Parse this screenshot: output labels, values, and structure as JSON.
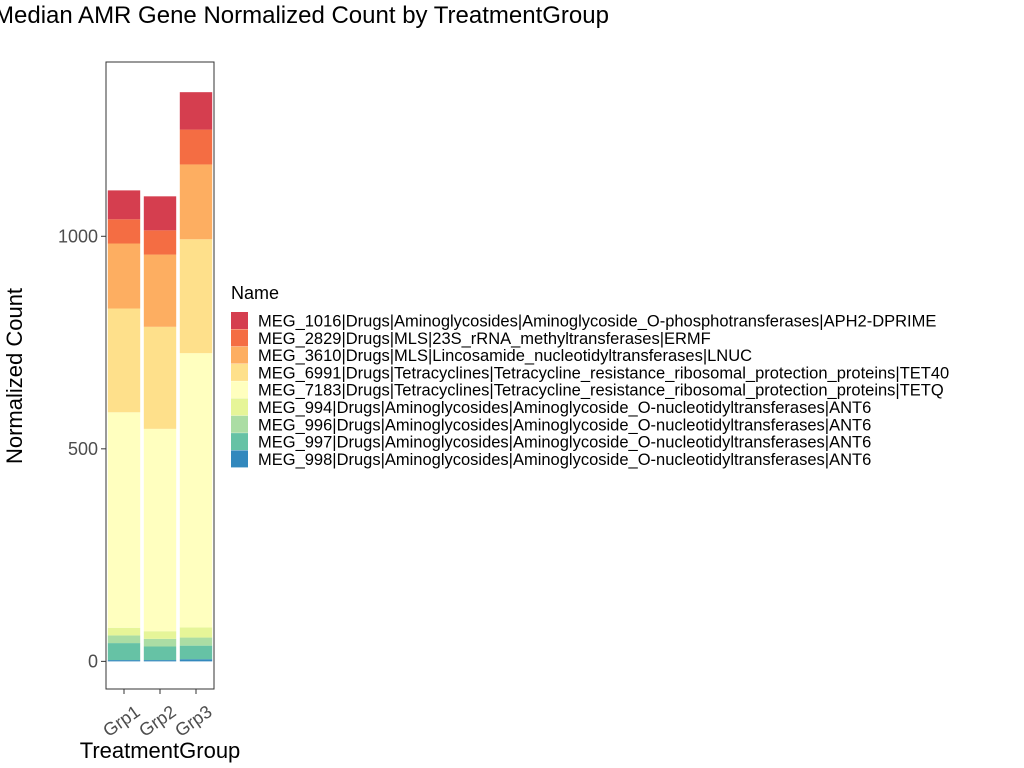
{
  "chart_data": {
    "type": "bar",
    "stacked": true,
    "title": "Median AMR Gene Normalized Count by TreatmentGroup",
    "xlabel": "TreatmentGroup",
    "ylabel": "Normalized Count",
    "categories": [
      "Grp1",
      "Grp2",
      "Grp3"
    ],
    "ylim": [
      -65,
      1410
    ],
    "yticks": [
      0,
      500,
      1000
    ],
    "legend": {
      "title": "Name",
      "placement": "right"
    },
    "series": [
      {
        "name": "MEG_998|Drugs|Aminoglycosides|Aminoglycoside_O-nucleotidyltransferases|ANT6",
        "color": "#3288bd",
        "values": [
          3,
          3,
          5
        ]
      },
      {
        "name": "MEG_997|Drugs|Aminoglycosides|Aminoglycoside_O-nucleotidyltransferases|ANT6",
        "color": "#66c2a5",
        "values": [
          40,
          32,
          32
        ]
      },
      {
        "name": "MEG_996|Drugs|Aminoglycosides|Aminoglycoside_O-nucleotidyltransferases|ANT6",
        "color": "#abdda4",
        "values": [
          18,
          18,
          19
        ]
      },
      {
        "name": "MEG_994|Drugs|Aminoglycosides|Aminoglycoside_O-nucleotidyltransferases|ANT6",
        "color": "#e6f598",
        "values": [
          18,
          18,
          24
        ]
      },
      {
        "name": "MEG_7183|Drugs|Tetracyclines|Tetracycline_resistance_ribosomal_protection_proteins|TETQ",
        "color": "#ffffbf",
        "values": [
          507,
          476,
          645
        ]
      },
      {
        "name": "MEG_6991|Drugs|Tetracyclines|Tetracycline_resistance_ribosomal_protection_proteins|TET40",
        "color": "#fee08b",
        "values": [
          244,
          240,
          268
        ]
      },
      {
        "name": "MEG_3610|Drugs|MLS|Lincosamide_nucleotidyltransferases|LNUC",
        "color": "#fdae61",
        "values": [
          153,
          170,
          176
        ]
      },
      {
        "name": "MEG_2829|Drugs|MLS|23S_rRNA_methyltransferases|ERMF",
        "color": "#f46d43",
        "values": [
          57,
          57,
          82
        ]
      },
      {
        "name": "MEG_1016|Drugs|Aminoglycosides|Aminoglycoside_O-phosphotransferases|APH2-DPRIME",
        "color": "#d53e4f",
        "values": [
          68,
          80,
          88
        ]
      }
    ]
  }
}
